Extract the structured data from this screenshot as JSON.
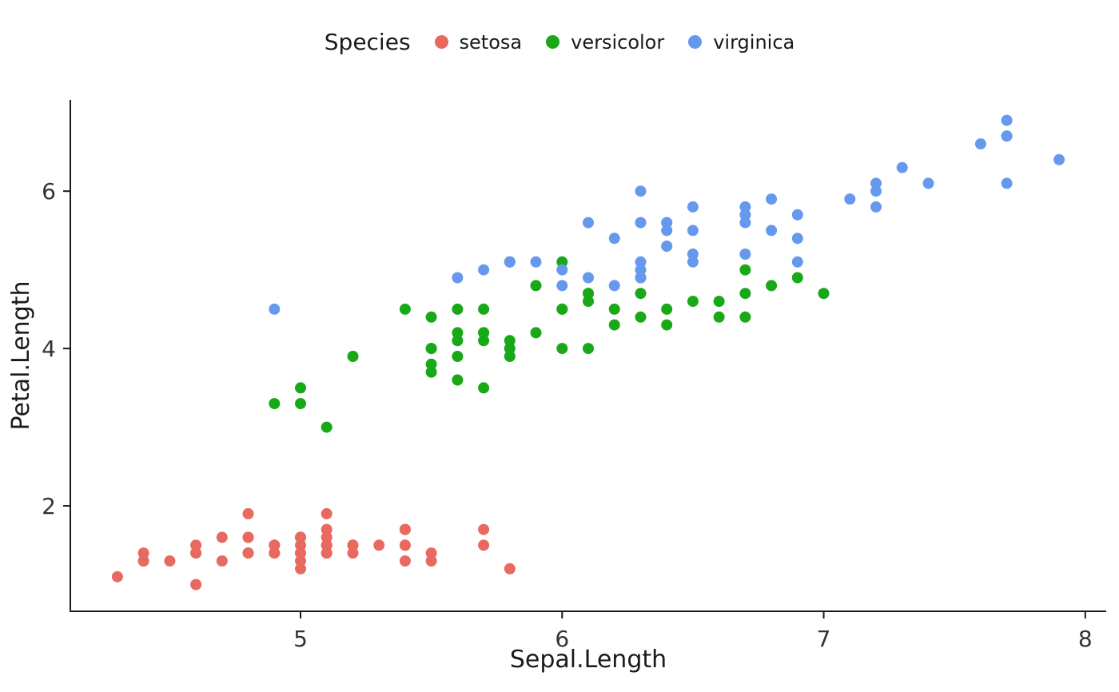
{
  "chart_data": {
    "type": "scatter",
    "title": "",
    "xlabel": "Sepal.Length",
    "ylabel": "Petal.Length",
    "legend_title": "Species",
    "legend_position": "top",
    "grid": false,
    "xlim": [
      4.12,
      8.08
    ],
    "ylim": [
      0.66,
      7.16
    ],
    "xticks": [
      5,
      6,
      7,
      8
    ],
    "yticks": [
      2,
      4,
      6
    ],
    "point_radius": 7,
    "axis_color": "#1a1a1a",
    "series": [
      {
        "name": "setosa",
        "color": "#E8695F",
        "x": [
          5.1,
          4.9,
          4.7,
          4.6,
          5.0,
          5.4,
          4.6,
          5.0,
          4.4,
          4.9,
          5.4,
          4.8,
          4.8,
          4.3,
          5.8,
          5.7,
          5.4,
          5.1,
          5.7,
          5.1,
          5.4,
          5.1,
          4.6,
          5.1,
          4.8,
          5.0,
          5.0,
          5.2,
          5.2,
          4.7,
          4.8,
          5.4,
          5.2,
          5.5,
          4.9,
          5.0,
          5.5,
          4.9,
          4.4,
          5.1,
          5.0,
          4.5,
          4.4,
          5.0,
          5.1,
          4.8,
          5.1,
          4.6,
          5.3,
          5.0
        ],
        "y": [
          1.4,
          1.4,
          1.3,
          1.5,
          1.4,
          1.7,
          1.4,
          1.5,
          1.4,
          1.5,
          1.5,
          1.6,
          1.4,
          1.1,
          1.2,
          1.5,
          1.3,
          1.4,
          1.7,
          1.5,
          1.7,
          1.5,
          1.0,
          1.7,
          1.9,
          1.6,
          1.6,
          1.5,
          1.4,
          1.6,
          1.6,
          1.5,
          1.5,
          1.4,
          1.5,
          1.2,
          1.3,
          1.4,
          1.3,
          1.5,
          1.3,
          1.3,
          1.3,
          1.6,
          1.9,
          1.4,
          1.6,
          1.4,
          1.5,
          1.4
        ]
      },
      {
        "name": "versicolor",
        "color": "#18A818",
        "x": [
          7.0,
          6.4,
          6.9,
          5.5,
          6.5,
          5.7,
          6.3,
          4.9,
          6.6,
          5.2,
          5.0,
          5.9,
          6.0,
          6.1,
          5.6,
          6.7,
          5.6,
          5.8,
          6.2,
          5.6,
          5.9,
          6.1,
          6.3,
          6.1,
          6.4,
          6.6,
          6.8,
          6.7,
          6.0,
          5.7,
          5.5,
          5.5,
          5.8,
          6.0,
          5.4,
          6.0,
          6.7,
          6.3,
          5.6,
          5.5,
          5.5,
          6.1,
          5.8,
          5.0,
          5.6,
          5.7,
          5.7,
          6.2,
          5.1,
          5.7
        ],
        "y": [
          4.7,
          4.5,
          4.9,
          4.0,
          4.6,
          4.5,
          4.7,
          3.3,
          4.6,
          3.9,
          3.5,
          4.2,
          4.0,
          4.7,
          3.6,
          4.4,
          4.5,
          4.1,
          4.5,
          3.9,
          4.8,
          4.0,
          4.9,
          4.7,
          4.3,
          4.4,
          4.8,
          5.0,
          4.5,
          3.5,
          3.8,
          3.7,
          3.9,
          5.1,
          4.5,
          4.5,
          4.7,
          4.4,
          4.1,
          4.0,
          4.4,
          4.6,
          4.0,
          3.3,
          4.2,
          4.2,
          4.2,
          4.3,
          3.0,
          4.1
        ]
      },
      {
        "name": "virginica",
        "color": "#6699EE",
        "x": [
          6.3,
          5.8,
          7.1,
          6.3,
          6.5,
          7.6,
          4.9,
          7.3,
          6.7,
          7.2,
          6.5,
          6.4,
          6.8,
          5.7,
          5.8,
          6.4,
          6.5,
          7.7,
          7.7,
          6.0,
          6.9,
          5.6,
          7.7,
          6.3,
          6.7,
          7.2,
          6.2,
          6.1,
          6.4,
          7.2,
          7.4,
          7.9,
          6.4,
          6.3,
          6.1,
          7.7,
          6.3,
          6.4,
          6.0,
          6.9,
          6.7,
          6.9,
          5.8,
          6.8,
          6.7,
          6.7,
          6.3,
          6.5,
          6.2,
          5.9
        ],
        "y": [
          6.0,
          5.1,
          5.9,
          5.6,
          5.8,
          6.6,
          4.5,
          6.3,
          5.8,
          6.1,
          5.1,
          5.3,
          5.5,
          5.0,
          5.1,
          5.3,
          5.5,
          6.7,
          6.9,
          5.0,
          5.7,
          4.9,
          6.7,
          4.9,
          5.7,
          6.0,
          4.8,
          4.9,
          5.6,
          5.8,
          6.1,
          6.4,
          5.6,
          5.1,
          5.6,
          6.1,
          5.6,
          5.5,
          4.8,
          5.4,
          5.6,
          5.1,
          5.1,
          5.9,
          5.7,
          5.2,
          5.0,
          5.2,
          5.4,
          5.1
        ]
      }
    ]
  }
}
